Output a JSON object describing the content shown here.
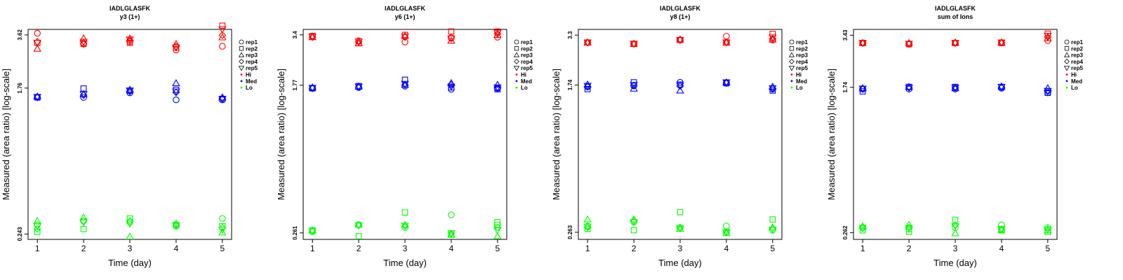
{
  "chart_data": [
    {
      "type": "scatter",
      "title": "IADLGLASFK",
      "subtitle": "y3 (1+)",
      "xlabel": "Time (day)",
      "ylabel": "Measured (area ratio) [log-scale]",
      "y_scale": "log",
      "y_ticks": [
        "3.62",
        "1.76",
        "0.243"
      ],
      "ylim": [
        0.226,
        3.9
      ],
      "x": [
        1,
        2,
        3,
        4,
        5
      ],
      "xlim": [
        0.8,
        5.2
      ],
      "legend_position": "right",
      "series": [
        {
          "group": "Hi",
          "replicate": "rep1",
          "values": [
            3.7,
            3.25,
            3.3,
            2.95,
            3.1
          ]
        },
        {
          "group": "Hi",
          "replicate": "rep2",
          "values": [
            3.25,
            3.2,
            3.25,
            3.05,
            4.1
          ]
        },
        {
          "group": "Hi",
          "replicate": "rep3",
          "values": [
            3.0,
            3.45,
            3.45,
            3.2,
            3.5
          ]
        },
        {
          "group": "Hi",
          "replicate": "rep4",
          "values": [
            3.3,
            3.2,
            3.35,
            3.1,
            3.6
          ]
        },
        {
          "group": "Hi",
          "replicate": "rep5",
          "values": [
            3.25,
            3.3,
            3.4,
            3.05,
            3.9
          ]
        },
        {
          "group": "Med",
          "replicate": "rep1",
          "values": [
            1.55,
            1.55,
            1.65,
            1.5,
            1.5
          ]
        },
        {
          "group": "Med",
          "replicate": "rep2",
          "values": [
            1.55,
            1.75,
            1.7,
            1.72,
            1.52
          ]
        },
        {
          "group": "Med",
          "replicate": "rep3",
          "values": [
            1.57,
            1.62,
            1.72,
            1.88,
            1.55
          ]
        },
        {
          "group": "Med",
          "replicate": "rep4",
          "values": [
            1.55,
            1.6,
            1.68,
            1.66,
            1.53
          ]
        },
        {
          "group": "Med",
          "replicate": "rep5",
          "values": [
            1.56,
            1.62,
            1.7,
            1.68,
            1.52
          ]
        },
        {
          "group": "Lo",
          "replicate": "rep1",
          "values": [
            0.275,
            0.29,
            0.285,
            0.27,
            0.3
          ]
        },
        {
          "group": "Lo",
          "replicate": "rep2",
          "values": [
            0.25,
            0.26,
            0.3,
            0.275,
            0.27
          ]
        },
        {
          "group": "Lo",
          "replicate": "rep3",
          "values": [
            0.29,
            0.305,
            0.235,
            0.28,
            0.248
          ]
        },
        {
          "group": "Lo",
          "replicate": "rep4",
          "values": [
            0.26,
            0.29,
            0.29,
            0.278,
            0.265
          ]
        },
        {
          "group": "Lo",
          "replicate": "rep5",
          "values": [
            0.27,
            0.285,
            0.28,
            0.272,
            0.258
          ]
        }
      ]
    },
    {
      "type": "scatter",
      "title": "IADLGLASFK",
      "subtitle": "y6 (1+)",
      "xlabel": "Time (day)",
      "ylabel": "Measured (area ratio) [log-scale]",
      "y_scale": "log",
      "y_ticks": [
        "3.4",
        "1.77",
        "0.261"
      ],
      "ylim": [
        0.24,
        3.65
      ],
      "x": [
        1,
        2,
        3,
        4,
        5
      ],
      "xlim": [
        0.8,
        5.2
      ],
      "legend_position": "right",
      "series": [
        {
          "group": "Hi",
          "replicate": "rep1",
          "values": [
            3.35,
            3.15,
            3.1,
            3.25,
            3.3
          ]
        },
        {
          "group": "Hi",
          "replicate": "rep2",
          "values": [
            3.35,
            3.05,
            3.4,
            3.55,
            3.55
          ]
        },
        {
          "group": "Hi",
          "replicate": "rep3",
          "values": [
            3.3,
            3.05,
            3.35,
            3.15,
            3.4
          ]
        },
        {
          "group": "Hi",
          "replicate": "rep4",
          "values": [
            3.3,
            3.1,
            3.3,
            3.3,
            3.45
          ]
        },
        {
          "group": "Hi",
          "replicate": "rep5",
          "values": [
            3.32,
            3.12,
            3.32,
            3.25,
            3.5
          ]
        },
        {
          "group": "Med",
          "replicate": "rep1",
          "values": [
            1.7,
            1.72,
            1.75,
            1.68,
            1.7
          ]
        },
        {
          "group": "Med",
          "replicate": "rep2",
          "values": [
            1.7,
            1.75,
            1.9,
            1.72,
            1.68
          ]
        },
        {
          "group": "Med",
          "replicate": "rep3",
          "values": [
            1.72,
            1.74,
            1.78,
            1.82,
            1.78
          ]
        },
        {
          "group": "Med",
          "replicate": "rep4",
          "values": [
            1.7,
            1.72,
            1.78,
            1.78,
            1.7
          ]
        },
        {
          "group": "Med",
          "replicate": "rep5",
          "values": [
            1.71,
            1.74,
            1.8,
            1.74,
            1.72
          ]
        },
        {
          "group": "Lo",
          "replicate": "rep1",
          "values": [
            0.265,
            0.29,
            0.28,
            0.33,
            0.29
          ]
        },
        {
          "group": "Lo",
          "replicate": "rep2",
          "values": [
            0.27,
            0.25,
            0.34,
            0.255,
            0.3
          ]
        },
        {
          "group": "Lo",
          "replicate": "rep3",
          "values": [
            0.27,
            0.29,
            0.29,
            0.255,
            0.25
          ]
        },
        {
          "group": "Lo",
          "replicate": "rep4",
          "values": [
            0.268,
            0.288,
            0.285,
            0.258,
            0.28
          ]
        },
        {
          "group": "Lo",
          "replicate": "rep5",
          "values": [
            0.268,
            0.288,
            0.286,
            0.26,
            0.27
          ]
        }
      ]
    },
    {
      "type": "scatter",
      "title": "IADLGLASFK",
      "subtitle": "y8 (1+)",
      "xlabel": "Time (day)",
      "ylabel": "Measured (area ratio) [log-scale]",
      "y_scale": "log",
      "y_ticks": [
        "3.3",
        "1.74",
        "0.263"
      ],
      "ylim": [
        0.24,
        3.55
      ],
      "x": [
        1,
        2,
        3,
        4,
        5
      ],
      "xlim": [
        0.8,
        5.2
      ],
      "legend_position": "right",
      "series": [
        {
          "group": "Hi",
          "replicate": "rep1",
          "values": [
            3.0,
            2.95,
            3.1,
            3.25,
            3.1
          ]
        },
        {
          "group": "Hi",
          "replicate": "rep2",
          "values": [
            3.0,
            2.95,
            3.1,
            3.0,
            3.35
          ]
        },
        {
          "group": "Hi",
          "replicate": "rep3",
          "values": [
            3.0,
            2.95,
            3.12,
            3.0,
            3.12
          ]
        },
        {
          "group": "Hi",
          "replicate": "rep4",
          "values": [
            3.0,
            2.96,
            3.1,
            3.0,
            3.15
          ]
        },
        {
          "group": "Hi",
          "replicate": "rep5",
          "values": [
            3.0,
            2.95,
            3.1,
            3.0,
            3.2
          ]
        },
        {
          "group": "Med",
          "replicate": "rep1",
          "values": [
            1.7,
            1.72,
            1.8,
            1.78,
            1.65
          ]
        },
        {
          "group": "Med",
          "replicate": "rep2",
          "values": [
            1.65,
            1.8,
            1.75,
            1.78,
            1.62
          ]
        },
        {
          "group": "Med",
          "replicate": "rep3",
          "values": [
            1.75,
            1.66,
            1.62,
            1.8,
            1.7
          ]
        },
        {
          "group": "Med",
          "replicate": "rep4",
          "values": [
            1.7,
            1.73,
            1.72,
            1.79,
            1.66
          ]
        },
        {
          "group": "Med",
          "replicate": "rep5",
          "values": [
            1.72,
            1.74,
            1.73,
            1.8,
            1.67
          ]
        },
        {
          "group": "Lo",
          "replicate": "rep1",
          "values": [
            0.285,
            0.3,
            0.28,
            0.285,
            0.27
          ]
        },
        {
          "group": "Lo",
          "replicate": "rep2",
          "values": [
            0.275,
            0.27,
            0.34,
            0.265,
            0.31
          ]
        },
        {
          "group": "Lo",
          "replicate": "rep3",
          "values": [
            0.31,
            0.31,
            0.275,
            0.26,
            0.28
          ]
        },
        {
          "group": "Lo",
          "replicate": "rep4",
          "values": [
            0.28,
            0.305,
            0.277,
            0.263,
            0.275
          ]
        },
        {
          "group": "Lo",
          "replicate": "rep5",
          "values": [
            0.283,
            0.3,
            0.276,
            0.262,
            0.272
          ]
        }
      ]
    },
    {
      "type": "scatter",
      "title": "IADLGLASFK",
      "subtitle": "sum of Ions",
      "xlabel": "Time (day)",
      "ylabel": "Measured (area ratio) [log-scale]",
      "y_scale": "log",
      "y_ticks": [
        "3.43",
        "1.74",
        "0.262"
      ],
      "ylim": [
        0.24,
        3.7
      ],
      "x": [
        1,
        2,
        3,
        4,
        5
      ],
      "xlim": [
        0.8,
        5.2
      ],
      "legend_position": "right",
      "series": [
        {
          "group": "Hi",
          "replicate": "rep1",
          "values": [
            3.1,
            3.05,
            3.1,
            3.1,
            3.2
          ]
        },
        {
          "group": "Hi",
          "replicate": "rep2",
          "values": [
            3.1,
            3.05,
            3.1,
            3.1,
            3.5
          ]
        },
        {
          "group": "Hi",
          "replicate": "rep3",
          "values": [
            3.1,
            3.1,
            3.12,
            3.12,
            3.3
          ]
        },
        {
          "group": "Hi",
          "replicate": "rep4",
          "values": [
            3.1,
            3.07,
            3.1,
            3.12,
            3.35
          ]
        },
        {
          "group": "Hi",
          "replicate": "rep5",
          "values": [
            3.1,
            3.07,
            3.1,
            3.12,
            3.4
          ]
        },
        {
          "group": "Med",
          "replicate": "rep1",
          "values": [
            1.7,
            1.7,
            1.7,
            1.72,
            1.62
          ]
        },
        {
          "group": "Med",
          "replicate": "rep2",
          "values": [
            1.65,
            1.75,
            1.75,
            1.75,
            1.62
          ]
        },
        {
          "group": "Med",
          "replicate": "rep3",
          "values": [
            1.72,
            1.75,
            1.72,
            1.76,
            1.72
          ]
        },
        {
          "group": "Med",
          "replicate": "rep4",
          "values": [
            1.7,
            1.73,
            1.73,
            1.74,
            1.65
          ]
        },
        {
          "group": "Med",
          "replicate": "rep5",
          "values": [
            1.71,
            1.73,
            1.73,
            1.75,
            1.66
          ]
        },
        {
          "group": "Lo",
          "replicate": "rep1",
          "values": [
            0.28,
            0.275,
            0.28,
            0.29,
            0.28
          ]
        },
        {
          "group": "Lo",
          "replicate": "rep2",
          "values": [
            0.27,
            0.265,
            0.31,
            0.27,
            0.265
          ]
        },
        {
          "group": "Lo",
          "replicate": "rep3",
          "values": [
            0.285,
            0.29,
            0.26,
            0.272,
            0.27
          ]
        },
        {
          "group": "Lo",
          "replicate": "rep4",
          "values": [
            0.278,
            0.28,
            0.29,
            0.272,
            0.275
          ]
        },
        {
          "group": "Lo",
          "replicate": "rep5",
          "values": [
            0.279,
            0.278,
            0.285,
            0.275,
            0.272
          ]
        }
      ]
    }
  ],
  "legend": [
    {
      "label": "rep1",
      "symbol": "circle"
    },
    {
      "label": "rep2",
      "symbol": "square"
    },
    {
      "label": "rep3",
      "symbol": "triangle-up"
    },
    {
      "label": "rep4",
      "symbol": "diamond"
    },
    {
      "label": "rep5",
      "symbol": "triangle-down"
    },
    {
      "label": "Hi",
      "symbol": "dot",
      "color": "#ff0000"
    },
    {
      "label": "Med",
      "symbol": "dot",
      "color": "#0000ff"
    },
    {
      "label": "Lo",
      "symbol": "dot",
      "color": "#00ff00"
    }
  ],
  "colors": {
    "Hi": "#ff0000",
    "Med": "#0000ff",
    "Lo": "#00ff00",
    "axis": "#000000"
  }
}
